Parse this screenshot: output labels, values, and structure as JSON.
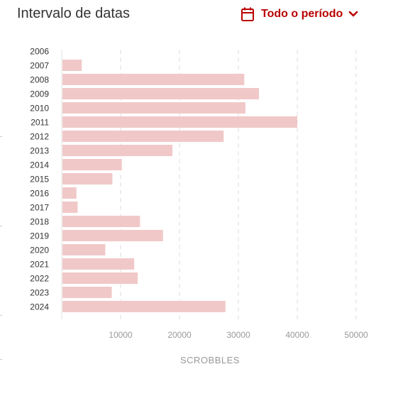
{
  "header": {
    "title": "Intervalo de datas",
    "range_label": "Todo o período",
    "calendar_icon": "calendar-icon",
    "chevron_icon": "chevron-down-icon",
    "accent_color": "#b90000"
  },
  "chart_data": {
    "type": "bar",
    "orientation": "horizontal",
    "categories": [
      "2006",
      "2007",
      "2008",
      "2009",
      "2010",
      "2011",
      "2012",
      "2013",
      "2014",
      "2015",
      "2016",
      "2017",
      "2018",
      "2019",
      "2020",
      "2021",
      "2022",
      "2023",
      "2024"
    ],
    "values": [
      0,
      3400,
      31000,
      33500,
      31200,
      40000,
      27500,
      18800,
      10200,
      8600,
      2500,
      2700,
      13300,
      17200,
      7400,
      12300,
      12900,
      8500,
      27800
    ],
    "xlabel": "SCROBBLES",
    "ylabel": "",
    "xlim": [
      0,
      50000
    ],
    "xticks": [
      10000,
      20000,
      30000,
      40000,
      50000
    ],
    "grid": true,
    "bar_color": "#f1c8c8",
    "grid_color": "#e6e6e6"
  }
}
